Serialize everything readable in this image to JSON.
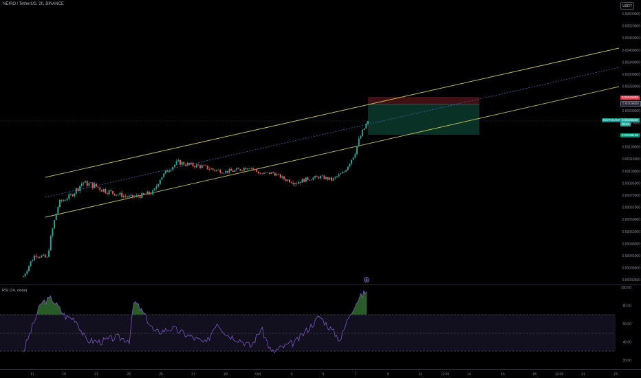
{
  "header": {
    "symbol_title": "NEIRO / TetherUS, 2h, BINANCE",
    "currency_button": "USDT"
  },
  "price_axis": {
    "ticks": [
      "0.00600000",
      "0.00520000",
      "0.00460000",
      "0.00400000",
      "0.00340000",
      "0.00300000",
      "0.00260000",
      "0.00230000",
      "0.00200000",
      "0.00175000",
      "0.00150000",
      "0.00130000",
      "0.00115000",
      "0.00100000",
      "0.00085000",
      "0.00075000",
      "0.00067000",
      "0.00059000",
      "0.00052000",
      "0.00046000",
      "0.00041000",
      "0.00036500",
      "0.00032500"
    ]
  },
  "tags": {
    "target": "0.00242800",
    "entry": "0.00226600",
    "symbol": "NEIROUSDT",
    "current_price": "0.00186228",
    "countdown": "00:53",
    "stop": "0.00159148"
  },
  "time_axis": {
    "ticks": [
      "17",
      "19",
      "21",
      "23",
      "25",
      "27",
      "29",
      "Oct",
      "3",
      "5",
      "7",
      "9",
      "11",
      "12:00",
      "14",
      "16",
      "18",
      "12:00",
      "21",
      "23"
    ]
  },
  "rsi": {
    "label": "RSI (14, close)",
    "ticks": [
      "100.00",
      "80.00",
      "60.00",
      "40.00",
      "20.00"
    ],
    "upper_band": 70,
    "middle_band": 50,
    "lower_band": 30
  },
  "chart_data": {
    "type": "candlestick",
    "symbol": "NEIRO / TetherUS",
    "interval": "2h",
    "exchange": "BINANCE",
    "scale": "log",
    "last_price": 0.00186228,
    "position": {
      "target": 0.002428,
      "entry": 0.002266,
      "stop": 0.00159148
    },
    "close_path": [
      {
        "x": "17",
        "y": 0.00033
      },
      {
        "x": "17",
        "y": 0.00043
      },
      {
        "x": "17",
        "y": 0.00041
      },
      {
        "x": "18",
        "y": 0.00075
      },
      {
        "x": "18",
        "y": 0.00082
      },
      {
        "x": "19",
        "y": 0.00093
      },
      {
        "x": "19",
        "y": 0.0009
      },
      {
        "x": "20",
        "y": 0.00086
      },
      {
        "x": "20",
        "y": 0.00083
      },
      {
        "x": "21",
        "y": 0.0008
      },
      {
        "x": "22",
        "y": 0.00082
      },
      {
        "x": "22",
        "y": 0.00085
      },
      {
        "x": "23",
        "y": 0.0011
      },
      {
        "x": "23",
        "y": 0.00124
      },
      {
        "x": "24",
        "y": 0.0012
      },
      {
        "x": "25",
        "y": 0.00118
      },
      {
        "x": "26",
        "y": 0.00113
      },
      {
        "x": "27",
        "y": 0.0011
      },
      {
        "x": "28",
        "y": 0.00112
      },
      {
        "x": "29",
        "y": 0.00118
      },
      {
        "x": "30",
        "y": 0.00106
      },
      {
        "x": "Oct",
        "y": 0.00108
      },
      {
        "x": "2",
        "y": 0.00097
      },
      {
        "x": "3",
        "y": 0.00093
      },
      {
        "x": "4",
        "y": 0.00098
      },
      {
        "x": "5",
        "y": 0.00101
      },
      {
        "x": "6",
        "y": 0.00096
      },
      {
        "x": "6",
        "y": 0.0011
      },
      {
        "x": "7",
        "y": 0.0014
      },
      {
        "x": "7",
        "y": 0.00186228
      }
    ]
  }
}
